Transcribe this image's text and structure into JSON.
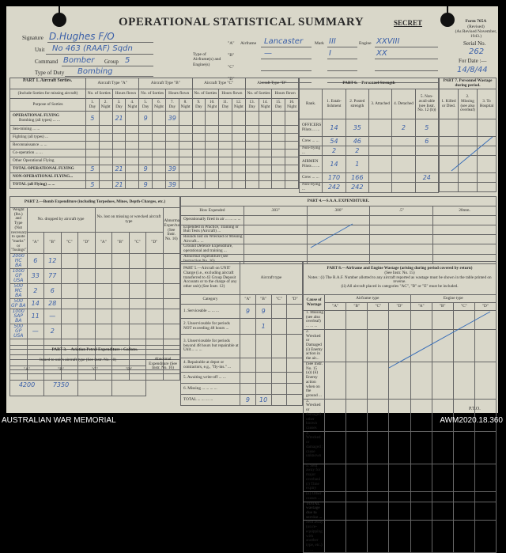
{
  "header": {
    "title": "OPERATIONAL STATISTICAL SUMMARY",
    "secret": "SECRET",
    "form": "Form 765A",
    "form_rev": "(Revised)",
    "form_rev2": "(As Revised November, 1943.)",
    "serial_label": "Serial No.",
    "serial": "262",
    "date_label": "For Date :—",
    "date": "14/8/44",
    "signature_label": "Signature",
    "signature": "D.Hughes F/O",
    "unit_label": "Unit",
    "unit": "No 463 (RAAF) Sqdn",
    "command_label": "Command",
    "command": "Bomber",
    "group_label": "Group",
    "group": "5",
    "duty_label": "Type of Duty",
    "duty": "Bombing",
    "type_label": "Type of Airframe(s) and Engine(s)",
    "airframe_label": "Airframe",
    "mark_label": "Mark",
    "engine_label": "Engine",
    "types": [
      {
        "code": "\"A\"",
        "airframe": "Lancaster",
        "mark": "III",
        "engine": "XXVIII"
      },
      {
        "code": "\"B\"",
        "airframe": "—",
        "mark": "I",
        "engine": "XX"
      },
      {
        "code": "\"C\"",
        "airframe": "",
        "mark": "",
        "engine": ""
      },
      {
        "code": "\"D\"",
        "airframe": "",
        "mark": "",
        "engine": ""
      }
    ]
  },
  "part1": {
    "title": "PART 1. Aircraft Sorties.",
    "note": "(Include Sorties for missing aircraft)",
    "purpose_label": "Purpose of Sorties",
    "types": [
      "Aircraft Type \"A\"",
      "Aircraft Type \"B\"",
      "Aircraft Type \"C\"",
      "Aircraft Type \"D\""
    ],
    "sub": [
      "No. of Sorties",
      "Hours flown"
    ],
    "cols": [
      "1. Day",
      "2. Night",
      "3. Day",
      "4. Night",
      "5. Day",
      "6. Night",
      "7. Day",
      "8. Night",
      "9. Day",
      "10. Night",
      "11. Day",
      "12. Night",
      "13. Day",
      "14. Night",
      "15. Day",
      "16. Night"
    ],
    "section": "OPERATIONAL FLYING",
    "rows": [
      {
        "label": "Bombing (all types) ... ...",
        "values": [
          "5",
          "",
          "21",
          "",
          "9",
          "",
          "39",
          "",
          "",
          "",
          "",
          "",
          "",
          "",
          "",
          ""
        ]
      },
      {
        "label": "Sea-mining ... ...",
        "values": [
          "",
          "",
          "",
          "",
          "",
          "",
          "",
          "",
          "",
          "",
          "",
          "",
          "",
          "",
          "",
          ""
        ]
      },
      {
        "label": "Fighting (all types) ...",
        "values": [
          "",
          "",
          "",
          "",
          "",
          "",
          "",
          "",
          "",
          "",
          "",
          "",
          "",
          "",
          "",
          ""
        ]
      },
      {
        "label": "Reconnaissance ... ...",
        "values": [
          "",
          "",
          "",
          "",
          "",
          "",
          "",
          "",
          "",
          "",
          "",
          "",
          "",
          "",
          "",
          ""
        ]
      },
      {
        "label": "Co-operation ... ...",
        "values": [
          "",
          "",
          "",
          "",
          "",
          "",
          "",
          "",
          "",
          "",
          "",
          "",
          "",
          "",
          "",
          ""
        ]
      },
      {
        "label": "Other Operational Flying",
        "values": [
          "",
          "",
          "",
          "",
          "",
          "",
          "",
          "",
          "",
          "",
          "",
          "",
          "",
          "",
          "",
          ""
        ]
      },
      {
        "label": "TOTAL OPERATIONAL FLYING",
        "bold": true,
        "values": [
          "5",
          "",
          "21",
          "",
          "9",
          "",
          "39",
          "",
          "",
          "",
          "",
          "",
          "",
          "",
          "",
          ""
        ]
      },
      {
        "label": "NON-OPERATIONAL FLYING...",
        "bold": true,
        "values": [
          "",
          "",
          "",
          "",
          "",
          "",
          "",
          "",
          "",
          "",
          "",
          "",
          "",
          "",
          "",
          ""
        ]
      },
      {
        "label": "TOTAL (all Flying) ... ...",
        "bold": true,
        "values": [
          "5",
          "",
          "21",
          "",
          "9",
          "",
          "39",
          "",
          "",
          "",
          "",
          "",
          "",
          "",
          "",
          ""
        ]
      }
    ]
  },
  "part6": {
    "title": "PART 6.—Personnel Strength",
    "rank_label": "Rank.",
    "cols": [
      "1. Estab-lishment",
      "2. Posted strength",
      "3. Attached",
      "4. Detached",
      "5. Non-avail-able (see Instr. No. 12 (b))"
    ],
    "rows": [
      {
        "label": "OFFICERS Pilots ... ...",
        "values": [
          "14",
          "35",
          "",
          "2",
          "5"
        ]
      },
      {
        "label": "Crew ... ...",
        "values": [
          "54",
          "46",
          "",
          "",
          "6"
        ]
      },
      {
        "label": "Non-flying ...",
        "values": [
          "2",
          "2",
          "",
          "",
          ""
        ]
      },
      {
        "label": "AIRMEN Pilots ... ...",
        "values": [
          "14",
          "1",
          "",
          "",
          ""
        ]
      },
      {
        "label": "Crew ... ...",
        "values": [
          "170",
          "166",
          "",
          "",
          "24"
        ]
      },
      {
        "label": "Non-flying ...",
        "values": [
          "242",
          "242",
          "",
          "",
          ""
        ]
      }
    ]
  },
  "part7": {
    "title": "PART 7. Personnel Wastage during period.",
    "cols": [
      "1. Killed or Died.",
      "2. Missing (see also overleaf)",
      "3. To Hospital"
    ]
  },
  "part2": {
    "title": "PART 2.—Bomb Expenditure (including Torpedoes, Mines, Depth-Charges, etc.)",
    "weight_label": "Weight (lbs.) and Type",
    "weight_note": "(Not necessary to quote \"marks\" or \"fusings\")",
    "dropped_label": "No. dropped by aircraft type",
    "lost_label": "No. lost on missing or wrecked aircraft type",
    "abnormal_label": "Abnormal Expen'ture (See Instr. No. 16)",
    "codes": [
      "\"A\"",
      "\"B\"",
      "\"C\"",
      "\"D\""
    ],
    "rows": [
      {
        "type": "2000 HC BA",
        "a": "6",
        "b": "12"
      },
      {
        "type": "1000 GP USA",
        "a": "33",
        "b": "77"
      },
      {
        "type": "500 MC BA",
        "a": "2",
        "b": "6"
      },
      {
        "type": "500 GP BA",
        "a": "14",
        "b": "28"
      },
      {
        "type": "1000 SAP BA",
        "a": "11",
        "b": "—"
      },
      {
        "type": "500 GP USA",
        "a": "—",
        "b": "2"
      },
      {
        "type": "",
        "a": "",
        "b": ""
      },
      {
        "type": "",
        "a": "",
        "b": ""
      },
      {
        "type": "",
        "a": "",
        "b": ""
      },
      {
        "type": "",
        "a": "",
        "b": ""
      }
    ]
  },
  "part3": {
    "title": "PART 3.—Aviation Petrol Expenditure : Gallons.",
    "issued_label": "Issued to unit's aircraft type (See Instr. No. 10)",
    "abnormal_label": "Abnormal Expenditure (See Instr. No. 16)",
    "codes": [
      "\"A\"",
      "\"B\"",
      "\"C\"",
      "\"D\""
    ],
    "values": [
      "4200",
      "7350",
      "",
      ""
    ]
  },
  "part4": {
    "title": "PART 4.—S.A.A. EXPENDITURE.",
    "how_label": "How Expended",
    "cols": [
      ".303\"",
      ".300\"",
      ".5\"",
      "20mm."
    ],
    "rows": [
      "Operationally fired in air ... ... ... ...",
      "Expended in Practice, Training or Butt Tests (Aircraft) ...",
      "Rounds lost on Wrecked or Missing Aircraft... ...",
      "Ground Defence Expenditure, operational and training ...",
      "Abnormal expenditure (see Instruction No. 16)"
    ]
  },
  "part5": {
    "title": "PART 5.—Aircraft on UNIT Charge (i.e., excluding aircraft transferred to 43 Group Deposit Accounts or to the charge of any other unit) (See Instr. 12)",
    "type_label": "Aircraft type",
    "category_label": "Category",
    "codes": [
      "\"A\"",
      "\"B\"",
      "\"C\"",
      "\"D\""
    ],
    "rows": [
      {
        "label": "1. Serviceable ... ... ...",
        "values": [
          "9",
          "9",
          "",
          ""
        ]
      },
      {
        "label": "2. Unserviceable for periods NOT exceeding 48 hours ...",
        "values": [
          "",
          "1",
          "",
          ""
        ]
      },
      {
        "label": "3. Unserviceable for periods beyond 48 hours but repairable at Unit... ... ...",
        "values": [
          "",
          "",
          "",
          ""
        ]
      },
      {
        "label": "4. Repairable at depot or contractors, e.g., \"fly-ins.\" ...",
        "values": [
          "",
          "",
          "",
          ""
        ]
      },
      {
        "label": "5. Awaiting write-off ... ...",
        "values": [
          "",
          "",
          "",
          ""
        ]
      },
      {
        "label": "6. Missing ... ... ... ...",
        "values": [
          "",
          "",
          "",
          ""
        ]
      },
      {
        "label": "TOTAL ... ... ... ...",
        "values": [
          "9",
          "10",
          "",
          ""
        ]
      }
    ]
  },
  "part8": {
    "title": "PART 8.—Airframe and Engine Wastage (arising during period covered by return)",
    "instr": "(See Instr. No. 15)",
    "note1": "Notes : (i) The R.A.F. Number allotted to any aircraft reported as wastage must be shown in the table printed on reverse.",
    "note2": "(ii) All aircraft placed in categories \"AC\", \"B\" or \"E\" must be included.",
    "cause_label": "Cause of Wastage",
    "airframe_label": "Airframe type",
    "engine_label": "Engine type",
    "codes": [
      "\"A\"",
      "\"B\"",
      "\"C\"",
      "\"D\"",
      "\"A\"",
      "\"B\"",
      "\"C\"",
      "\"D\""
    ],
    "rows": [
      "1. Missing (see also overleaf) ... ... ...",
      "2. Wrecked or Damaged (i) Enemy action in the air...",
      "(See Instr. No. 15 (a)) (ii) Enemy action when on the ground ...",
      "3. Wrecked or damaged : other known causes",
      "4. Wrecked or damaged : cause unknown ...",
      "5. Sent away for major overhaul (i) Time expiry",
      "(ii) Other causes ...",
      "TOTAL wastage due to service ...",
      "Sent away (on re-equipping with another type, etc.) ... ..."
    ]
  },
  "pto": "P.T.O.",
  "footer": {
    "left": "AUSTRALIAN WAR MEMORIAL",
    "right": "AWM2020.18.360"
  }
}
